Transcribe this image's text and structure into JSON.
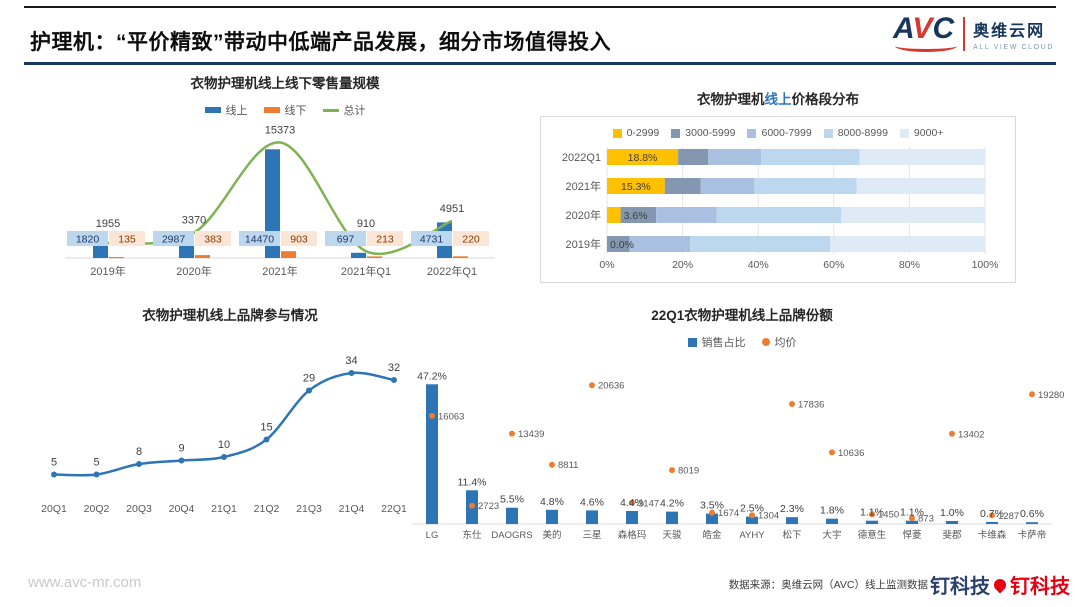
{
  "header": {
    "title": "护理机：“平价精致”带动中低端产品发展，细分市场值得投入",
    "logo": {
      "letters": [
        "A",
        "V",
        "C"
      ],
      "name_cn": "奥维云网",
      "name_en": "ALL VIEW CLOUD"
    }
  },
  "footer": {
    "watermark": "www.avc-mr.com",
    "source": "数据来源：奥维云网（AVC）线上监测数据",
    "brand": "钉科技"
  },
  "colors": {
    "online_blue": "#2E75B6",
    "offline_orange": "#ED7D31",
    "total_green": "#7FB254",
    "header_navy": "#17375E",
    "brand_red": "#E60012",
    "price_gold": "#FFC000"
  },
  "chart_data": [
    {
      "type": "bar",
      "title": "衣物护理机线上线下零售量规模",
      "categories": [
        "2019年",
        "2020年",
        "2021年",
        "2021年Q1",
        "2022年Q1"
      ],
      "series": [
        {
          "name": "线上",
          "type": "bar",
          "color": "#2E75B6",
          "values": [
            1820,
            2987,
            14470,
            697,
            4731
          ]
        },
        {
          "name": "线下",
          "type": "bar",
          "color": "#ED7D31",
          "values": [
            135,
            383,
            903,
            213,
            220
          ]
        },
        {
          "name": "总计",
          "type": "line",
          "color": "#7FB254",
          "values": [
            1955,
            3370,
            15373,
            910,
            4951
          ]
        }
      ],
      "ylim": [
        0,
        16500
      ],
      "legend_position": "top",
      "grid": false
    },
    {
      "type": "bar",
      "subtype": "stacked-horizontal-100pct",
      "title_prefix": "衣物护理机",
      "title_highlight": "线上",
      "title_suffix": "价格段分布",
      "categories": [
        "2022Q1",
        "2021年",
        "2020年",
        "2019年"
      ],
      "segments": [
        {
          "label": "0-2999",
          "color": "#FFC000",
          "values": [
            18.8,
            15.3,
            3.6,
            0.0
          ]
        },
        {
          "label": "3000-5999",
          "color": "#8497B0",
          "values": [
            8.0,
            9.5,
            9.4,
            6.0
          ]
        },
        {
          "label": "6000-7999",
          "color": "#A9C0E0",
          "values": [
            14.0,
            14.2,
            16.0,
            16.0
          ]
        },
        {
          "label": "8000-8999",
          "color": "#BDD7EE",
          "values": [
            26.0,
            27.0,
            33.0,
            37.0
          ]
        },
        {
          "label": "9000+",
          "color": "#DEEBF7",
          "values": [
            33.2,
            34.0,
            38.0,
            41.0
          ]
        }
      ],
      "labels": [
        "18.8%",
        "15.3%",
        "3.6%",
        "0.0%"
      ],
      "x_ticks": [
        "0%",
        "20%",
        "40%",
        "60%",
        "80%",
        "100%"
      ],
      "xlim": [
        0,
        100
      ],
      "grid": true,
      "legend_position": "top"
    },
    {
      "type": "line",
      "title": "衣物护理机线上品牌参与情况",
      "categories": [
        "20Q1",
        "20Q2",
        "20Q3",
        "20Q4",
        "21Q1",
        "21Q2",
        "21Q3",
        "21Q4",
        "22Q1"
      ],
      "values": [
        5,
        5,
        8,
        9,
        10,
        15,
        29,
        34,
        32
      ],
      "color": "#2E75B6",
      "ylim": [
        0,
        40
      ],
      "grid": false
    },
    {
      "type": "bar",
      "subtype": "bar-plus-scatter",
      "title": "22Q1衣物护理机线上品牌份额",
      "categories": [
        "LG",
        "东仕",
        "DAOGRS",
        "美的",
        "三星",
        "森格玛",
        "天骏",
        "皓金",
        "AYHY",
        "松下",
        "大宇",
        "德意生",
        "悍菱",
        "斐郡",
        "卡维森",
        "卡萨帝"
      ],
      "series": [
        {
          "name": "销售占比",
          "type": "bar",
          "color": "#2E75B6",
          "unit": "%",
          "values": [
            47.2,
            11.4,
            5.5,
            4.8,
            4.6,
            4.4,
            4.2,
            3.5,
            2.5,
            2.3,
            1.8,
            1.1,
            1.1,
            1.0,
            0.7,
            0.6
          ]
        },
        {
          "name": "均价",
          "type": "scatter",
          "color": "#ED7D31",
          "values": [
            16063,
            2723,
            13439,
            8811,
            20636,
            3147,
            8019,
            1674,
            1304,
            17836,
            10636,
            1450,
            873,
            13402,
            1287,
            19280
          ]
        }
      ],
      "share_ylim": [
        0,
        50
      ],
      "price_ylim": [
        0,
        22000
      ],
      "legend_position": "top",
      "grid": false
    }
  ]
}
